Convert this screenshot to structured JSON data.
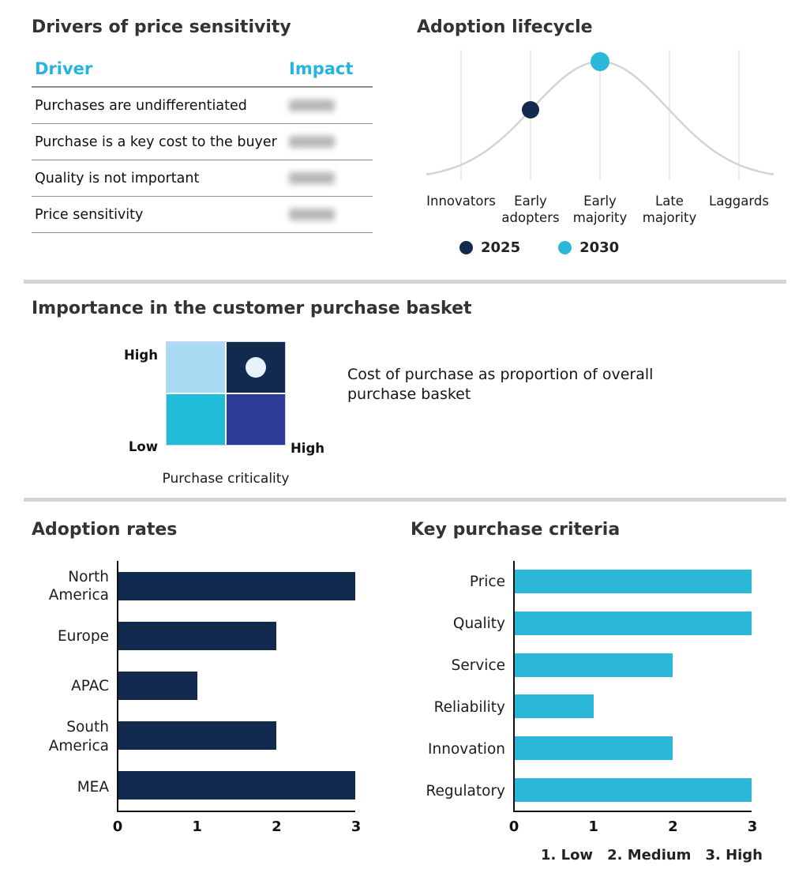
{
  "colors": {
    "navy": "#122a4d",
    "cyan": "#2bb7d8",
    "header_cyan": "#25b3e0",
    "light_blue": "#a9dcf4",
    "indigo": "#2e3b97",
    "curve_gray": "#d4d4d4",
    "divider_gray": "#d5d5d5"
  },
  "sections": {
    "drivers": {
      "title": "Drivers of price sensitivity",
      "columns": {
        "driver": "Driver",
        "impact": "Impact"
      },
      "impact_values_blurred": true,
      "rows": [
        {
          "driver": "Purchases are undifferentiated"
        },
        {
          "driver": "Purchase is a key cost to the buyer"
        },
        {
          "driver": "Quality is not important"
        },
        {
          "driver": "Price sensitivity"
        }
      ]
    }
  },
  "chart_data": [
    {
      "id": "adoption-lifecycle",
      "type": "line",
      "title": "Adoption lifecycle",
      "categories": [
        "Innovators",
        "Early adopters",
        "Early majority",
        "Late majority",
        "Laggards"
      ],
      "curve": "gray bell curve across categories",
      "series": [
        {
          "name": "2025",
          "color": "#122a4d",
          "point_category": "Early adopters"
        },
        {
          "name": "2030",
          "color": "#2bb7d8",
          "point_category": "Early majority"
        }
      ],
      "legend_position": "bottom",
      "grid": "vertical gridlines at each category"
    },
    {
      "id": "purchase-basket-matrix",
      "type": "heatmap",
      "title": "Importance in the customer purchase basket",
      "x_axis_label": "Purchase criticality",
      "y_axis_high": "High",
      "y_axis_low": "Low",
      "x_axis_high": "High",
      "quadrants": [
        {
          "position": "top-left",
          "color": "#a9dcf4"
        },
        {
          "position": "top-right",
          "color": "#122a4d",
          "marker": "white-dot"
        },
        {
          "position": "bottom-left",
          "color": "#20bcd8"
        },
        {
          "position": "bottom-right",
          "color": "#2e3b97"
        }
      ],
      "annotation": "Cost of purchase as proportion of overall purchase basket"
    },
    {
      "id": "adoption-rates",
      "type": "bar",
      "orientation": "horizontal",
      "title": "Adoption rates",
      "categories": [
        "North America",
        "Europe",
        "APAC",
        "South America",
        "MEA"
      ],
      "values": [
        3,
        2,
        1,
        2,
        3
      ],
      "xlim": [
        0,
        3
      ],
      "ticks": [
        0,
        1,
        2,
        3
      ],
      "bar_color": "#122a4d",
      "grid": "off"
    },
    {
      "id": "key-purchase-criteria",
      "type": "bar",
      "orientation": "horizontal",
      "title": "Key purchase criteria",
      "categories": [
        "Price",
        "Quality",
        "Service",
        "Reliability",
        "Innovation",
        "Regulatory"
      ],
      "values": [
        3,
        3,
        2,
        1,
        2,
        3
      ],
      "xlim": [
        0,
        3
      ],
      "ticks": [
        0,
        1,
        2,
        3
      ],
      "bar_color": "#2bb7d8",
      "grid": "off",
      "footnote": [
        "1. Low",
        "2. Medium",
        "3. High"
      ]
    }
  ]
}
